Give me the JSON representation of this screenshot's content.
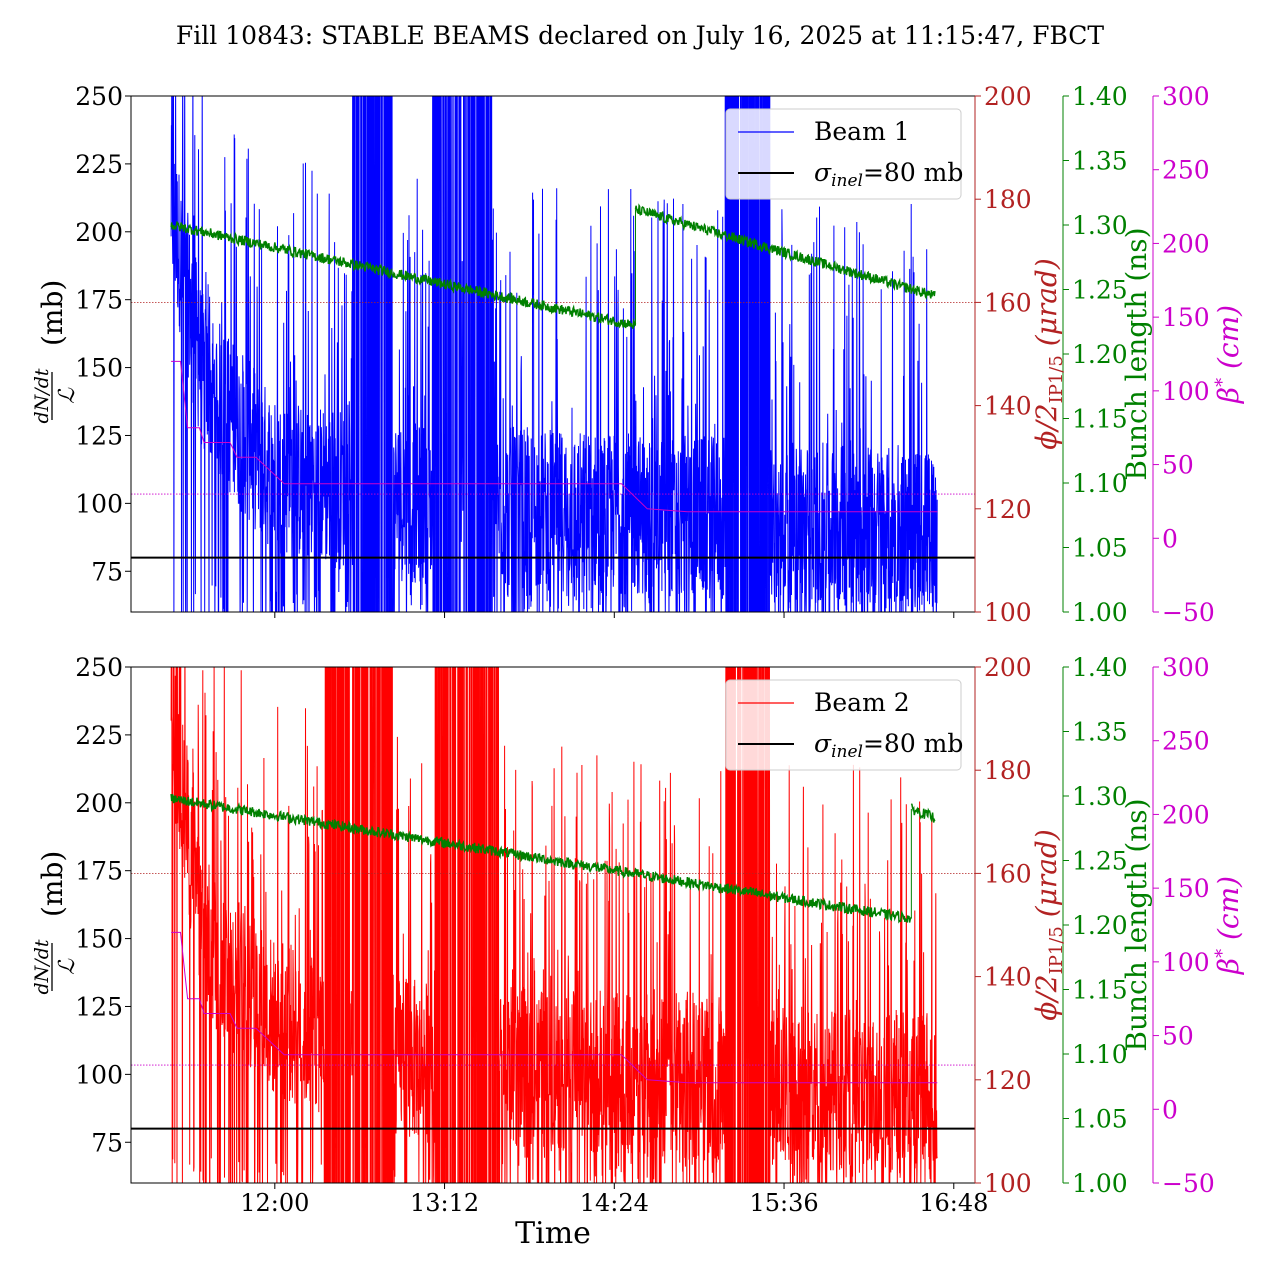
{
  "title": "Fill 10843: STABLE BEAMS declared on July 16, 2025 at 11:15:47, FBCT",
  "chart_data": [
    {
      "type": "line",
      "panel": "top",
      "xlabel": "Time",
      "x_ticks": [
        "12:00",
        "13:12",
        "14:24",
        "15:36",
        "16:48"
      ],
      "x_tick_minutes": [
        720,
        792,
        864,
        936,
        1008
      ],
      "xlim_minutes": [
        659,
        1017
      ],
      "y_left": {
        "label_num": "dN/dt",
        "label_den": "ℒ",
        "label_unit": "(mb)",
        "lim": [
          60,
          250
        ],
        "ticks": [
          "75",
          "100",
          "125",
          "150",
          "175",
          "200",
          "225",
          "250"
        ]
      },
      "y_phi": {
        "label": "ϕ/2",
        "label_sub": "IP1/5",
        "label_unit": "(μrad)",
        "lim": [
          100,
          200
        ],
        "ticks": [
          "100",
          "120",
          "140",
          "160",
          "180",
          "200"
        ],
        "color": "#b22222"
      },
      "y_bunch": {
        "label": "Bunch length (ns)",
        "lim": [
          1.0,
          1.4
        ],
        "ticks": [
          "1.00",
          "1.05",
          "1.10",
          "1.15",
          "1.20",
          "1.25",
          "1.30",
          "1.35",
          "1.40"
        ],
        "color": "#008000"
      },
      "y_beta": {
        "label": "β",
        "label_sup": "*",
        "label_unit": "(cm)",
        "lim": [
          -50,
          300
        ],
        "ticks": [
          "−50",
          "0",
          "50",
          "100",
          "150",
          "200",
          "250",
          "300"
        ],
        "color": "#cc00cc"
      },
      "legend": [
        {
          "label": "Beam 1",
          "color": "#0000ff"
        },
        {
          "label_sigma": "σ",
          "label_sub": "inel",
          "label_rest": "=80 mb",
          "color": "#000000"
        }
      ],
      "series": [
        {
          "name": "Beam 1",
          "axis": "left",
          "color": "#0000ff",
          "start": 676,
          "end": 1001,
          "noisy": true,
          "baseline_segments": [
            [
              676,
              210
            ],
            [
              690,
              145
            ],
            [
              720,
              110
            ],
            [
              780,
              100
            ],
            [
              900,
              95
            ],
            [
              1001,
              90
            ]
          ],
          "spikes": [
            [
              753,
              770
            ],
            [
              787,
              799
            ],
            [
              800,
              812
            ],
            [
              911,
              930
            ]
          ]
        },
        {
          "name": "σ_inel=80 mb",
          "axis": "left",
          "color": "#000000",
          "value": 80
        },
        {
          "name": "ϕ/2 reference",
          "axis": "phi",
          "color": "#b22222",
          "value": 160,
          "dotted": true
        },
        {
          "name": "β* reference",
          "axis": "beta",
          "color": "#cc00cc",
          "value": 30,
          "dotted": true
        },
        {
          "name": "Bunch length",
          "axis": "bunch",
          "color": "#008000",
          "segments": [
            [
              [
                676,
                1.3
              ],
              [
                873,
                1.222
              ]
            ],
            [
              [
                873,
                1.312
              ],
              [
                1000,
                1.245
              ]
            ]
          ]
        },
        {
          "name": "β*",
          "axis": "beta",
          "color": "#cc00cc",
          "steps": [
            [
              676,
              120
            ],
            [
              680,
              120
            ],
            [
              682,
              90
            ],
            [
              683,
              75
            ],
            [
              688,
              75
            ],
            [
              690,
              65
            ],
            [
              701,
              65
            ],
            [
              704,
              55
            ],
            [
              712,
              55
            ],
            [
              724,
              37
            ],
            [
              867,
              37
            ],
            [
              878,
              20
            ],
            [
              895,
              18
            ],
            [
              1001,
              18
            ]
          ]
        }
      ]
    },
    {
      "type": "line",
      "panel": "bottom",
      "xlabel": "Time",
      "x_ticks": [
        "12:00",
        "13:12",
        "14:24",
        "15:36",
        "16:48"
      ],
      "x_tick_minutes": [
        720,
        792,
        864,
        936,
        1008
      ],
      "xlim_minutes": [
        659,
        1017
      ],
      "y_left": {
        "label_num": "dN/dt",
        "label_den": "ℒ",
        "label_unit": "(mb)",
        "lim": [
          60,
          250
        ],
        "ticks": [
          "75",
          "100",
          "125",
          "150",
          "175",
          "200",
          "225",
          "250"
        ]
      },
      "y_phi": {
        "label": "ϕ/2",
        "label_sub": "IP1/5",
        "label_unit": "(μrad)",
        "lim": [
          100,
          200
        ],
        "ticks": [
          "100",
          "120",
          "140",
          "160",
          "180",
          "200"
        ],
        "color": "#b22222"
      },
      "y_bunch": {
        "label": "Bunch length (ns)",
        "lim": [
          1.0,
          1.4
        ],
        "ticks": [
          "1.00",
          "1.05",
          "1.10",
          "1.15",
          "1.20",
          "1.25",
          "1.30",
          "1.35",
          "1.40"
        ],
        "color": "#008000"
      },
      "y_beta": {
        "label": "β",
        "label_sup": "*",
        "label_unit": "(cm)",
        "lim": [
          -50,
          300
        ],
        "ticks": [
          "−50",
          "0",
          "50",
          "100",
          "150",
          "200",
          "250",
          "300"
        ],
        "color": "#cc00cc"
      },
      "legend": [
        {
          "label": "Beam 2",
          "color": "#ff0000"
        },
        {
          "label_sigma": "σ",
          "label_sub": "inel",
          "label_rest": "=80 mb",
          "color": "#000000"
        }
      ],
      "series": [
        {
          "name": "Beam 2",
          "axis": "left",
          "color": "#ff0000",
          "start": 676,
          "end": 1001,
          "noisy": true,
          "baseline_segments": [
            [
              676,
              230
            ],
            [
              690,
              150
            ],
            [
              720,
              120
            ],
            [
              780,
              105
            ],
            [
              900,
              98
            ],
            [
              1001,
              92
            ]
          ],
          "spikes": [
            [
              741,
              752
            ],
            [
              753,
              770
            ],
            [
              788,
              800
            ],
            [
              800,
              815
            ],
            [
              911,
              930
            ]
          ]
        },
        {
          "name": "σ_inel=80 mb",
          "axis": "left",
          "color": "#000000",
          "value": 80
        },
        {
          "name": "ϕ/2 reference",
          "axis": "phi",
          "color": "#b22222",
          "value": 160,
          "dotted": true
        },
        {
          "name": "β* reference",
          "axis": "beta",
          "color": "#cc00cc",
          "value": 30,
          "dotted": true
        },
        {
          "name": "Bunch length",
          "axis": "bunch",
          "color": "#008000",
          "segments": [
            [
              [
                676,
                1.298
              ],
              [
                990,
                1.205
              ]
            ],
            [
              [
                990,
                1.29
              ],
              [
                1000,
                1.283
              ]
            ]
          ]
        },
        {
          "name": "β*",
          "axis": "beta",
          "color": "#cc00cc",
          "steps": [
            [
              676,
              120
            ],
            [
              680,
              120
            ],
            [
              682,
              90
            ],
            [
              683,
              75
            ],
            [
              688,
              75
            ],
            [
              690,
              65
            ],
            [
              701,
              65
            ],
            [
              704,
              55
            ],
            [
              712,
              55
            ],
            [
              724,
              37
            ],
            [
              867,
              37
            ],
            [
              878,
              20
            ],
            [
              895,
              18
            ],
            [
              1001,
              18
            ]
          ]
        }
      ]
    }
  ]
}
